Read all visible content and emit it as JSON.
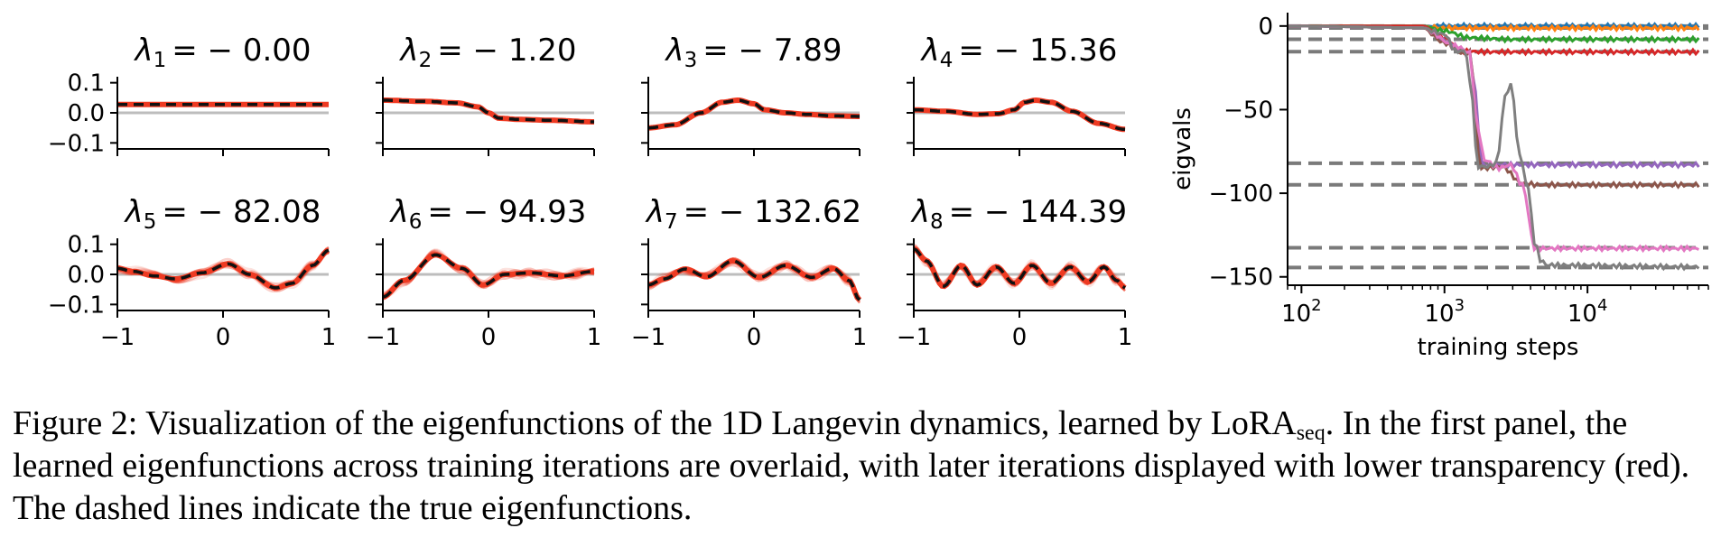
{
  "figure": {
    "caption": {
      "label": "Figure 2:",
      "text_before_sub": "Visualization of the eigenfunctions of the 1D Langevin dynamics, learned by LoRA",
      "sub": "seq",
      "text_after_sub": ". In the first panel, the learned eigenfunctions across training iterations are overlaid, with later iterations displayed with lower transparency (red). The dashed lines indicate the true eigenfunctions."
    }
  },
  "chart_data": [
    {
      "type": "line",
      "description": "8 eigenfunction panels",
      "x_range": [
        -1,
        1
      ],
      "xticks": [
        "−1",
        "0",
        "1"
      ],
      "ylim": [
        -0.12,
        0.12
      ],
      "yticks": [
        "0.1",
        "0.0",
        "−0.1"
      ],
      "panels": [
        {
          "title_sym": "λ",
          "sub": "1",
          "title_val": "= − 0.00",
          "x": [
            -1,
            -0.5,
            0,
            0.5,
            1
          ],
          "true_y": [
            0.028,
            0.028,
            0.028,
            0.028,
            0.028
          ]
        },
        {
          "title_sym": "λ",
          "sub": "2",
          "title_val": "= − 1.20",
          "x": [
            -1,
            -0.6,
            -0.3,
            -0.1,
            0.0,
            0.1,
            0.3,
            0.6,
            1
          ],
          "true_y": [
            0.042,
            0.038,
            0.033,
            0.02,
            0.0,
            -0.018,
            -0.022,
            -0.025,
            -0.03
          ]
        },
        {
          "title_sym": "λ",
          "sub": "3",
          "title_val": "= − 7.89",
          "x": [
            -1,
            -0.75,
            -0.5,
            -0.3,
            -0.15,
            0.0,
            0.1,
            0.3,
            0.5,
            0.75,
            1
          ],
          "true_y": [
            -0.05,
            -0.04,
            0.0,
            0.035,
            0.042,
            0.03,
            0.01,
            0.0,
            -0.005,
            -0.01,
            -0.012
          ]
        },
        {
          "title_sym": "λ",
          "sub": "4",
          "title_val": "= − 15.36",
          "x": [
            -1,
            -0.7,
            -0.4,
            -0.2,
            -0.05,
            0.05,
            0.15,
            0.3,
            0.5,
            0.75,
            1
          ],
          "true_y": [
            0.01,
            0.005,
            -0.005,
            -0.003,
            0.01,
            0.035,
            0.042,
            0.035,
            0.005,
            -0.035,
            -0.055
          ]
        },
        {
          "title_sym": "λ",
          "sub": "5",
          "title_val": "= − 82.08",
          "x": [
            -1,
            -0.85,
            -0.65,
            -0.45,
            -0.2,
            0.05,
            0.25,
            0.5,
            0.65,
            0.85,
            1
          ],
          "true_y": [
            0.02,
            0.01,
            -0.005,
            -0.015,
            0.005,
            0.035,
            0.0,
            -0.045,
            -0.03,
            0.03,
            0.08
          ]
        },
        {
          "title_sym": "λ",
          "sub": "6",
          "title_val": "= − 94.93",
          "x": [
            -1,
            -0.8,
            -0.5,
            -0.25,
            -0.05,
            0.15,
            0.4,
            0.7,
            1
          ],
          "true_y": [
            -0.075,
            -0.02,
            0.065,
            0.02,
            -0.035,
            0.0,
            0.005,
            -0.005,
            0.01
          ]
        },
        {
          "title_sym": "λ",
          "sub": "7",
          "title_val": "= − 132.62",
          "x": [
            -1,
            -0.85,
            -0.65,
            -0.45,
            -0.2,
            0.05,
            0.3,
            0.55,
            0.75,
            0.9,
            1
          ],
          "true_y": [
            -0.035,
            -0.015,
            0.018,
            -0.008,
            0.045,
            -0.01,
            0.03,
            -0.01,
            0.02,
            -0.02,
            -0.085
          ]
        },
        {
          "title_sym": "λ",
          "sub": "8",
          "title_val": "= − 144.39",
          "x": [
            -1,
            -0.88,
            -0.72,
            -0.55,
            -0.4,
            -0.22,
            -0.05,
            0.12,
            0.3,
            0.48,
            0.65,
            0.8,
            0.92,
            1
          ],
          "true_y": [
            0.085,
            0.045,
            -0.04,
            0.03,
            -0.035,
            0.025,
            -0.03,
            0.03,
            -0.03,
            0.025,
            -0.025,
            0.025,
            -0.02,
            -0.045
          ]
        }
      ]
    },
    {
      "type": "line",
      "description": "eigenvalues vs training steps (log x)",
      "xlabel": "training steps",
      "ylabel": "eigvals",
      "xscale": "log",
      "xlim": [
        80,
        70000
      ],
      "xticks": [
        {
          "base": "10",
          "exp": "2",
          "value": 100
        },
        {
          "base": "10",
          "exp": "3",
          "value": 1000
        },
        {
          "base": "10",
          "exp": "4",
          "value": 10000
        }
      ],
      "ylim": [
        -155,
        8
      ],
      "yticks": [
        {
          "label": "0",
          "value": 0
        },
        {
          "label": "−50",
          "value": -50
        },
        {
          "label": "−100",
          "value": -100
        },
        {
          "label": "−150",
          "value": -150
        }
      ],
      "true_values": [
        -0.0,
        -1.2,
        -7.89,
        -15.36,
        -82.08,
        -94.93,
        -132.62,
        -144.39
      ],
      "series": [
        {
          "name": "λ1",
          "color": "#1f77b4",
          "x": [
            80,
            700,
            60000
          ],
          "y": [
            0,
            0,
            0
          ]
        },
        {
          "name": "λ2",
          "color": "#ff7f0e",
          "x": [
            80,
            700,
            1000,
            60000
          ],
          "y": [
            0,
            0,
            -1.2,
            -1.2
          ]
        },
        {
          "name": "λ3",
          "color": "#2ca02c",
          "x": [
            80,
            700,
            1000,
            1500,
            3000,
            60000
          ],
          "y": [
            0,
            0,
            -3,
            -7,
            -8,
            -8
          ]
        },
        {
          "name": "λ4",
          "color": "#d62728",
          "x": [
            80,
            700,
            1000,
            1300,
            2000,
            60000
          ],
          "y": [
            0,
            0,
            -7,
            -15,
            -15.5,
            -15.5
          ]
        },
        {
          "name": "λ5",
          "color": "#9467bd",
          "x": [
            80,
            700,
            1100,
            1300,
            1500,
            1650,
            1800,
            1900,
            2100,
            60000
          ],
          "y": [
            0,
            -1,
            -10,
            -15,
            -16,
            -40,
            -80,
            -84,
            -83,
            -83
          ]
        },
        {
          "name": "λ6",
          "color": "#8c564b",
          "x": [
            80,
            700,
            1000,
            1300,
            1500,
            1800,
            2500,
            3500,
            4500,
            60000
          ],
          "y": [
            0,
            -1,
            -10,
            -16,
            -16,
            -85,
            -84,
            -94,
            -95,
            -95
          ]
        },
        {
          "name": "λ7",
          "color": "#e377c2",
          "x": [
            80,
            700,
            1200,
            1500,
            1700,
            1900,
            2400,
            2900,
            3500,
            4300,
            60000
          ],
          "y": [
            0,
            -1,
            -12,
            -16,
            -60,
            -80,
            -85,
            -83,
            -95,
            -133,
            -133
          ]
        },
        {
          "name": "λ8",
          "color": "#7f7f7f",
          "x": [
            80,
            700,
            1000,
            1200,
            1400,
            1550,
            1700,
            2000,
            2300,
            2700,
            2950,
            3300,
            3800,
            4300,
            4700,
            5200,
            60000
          ],
          "y": [
            0,
            -1,
            -5,
            -15,
            -15,
            -40,
            -84,
            -84,
            -82,
            -40,
            -35,
            -75,
            -95,
            -130,
            -140,
            -143,
            -144
          ]
        }
      ]
    }
  ]
}
